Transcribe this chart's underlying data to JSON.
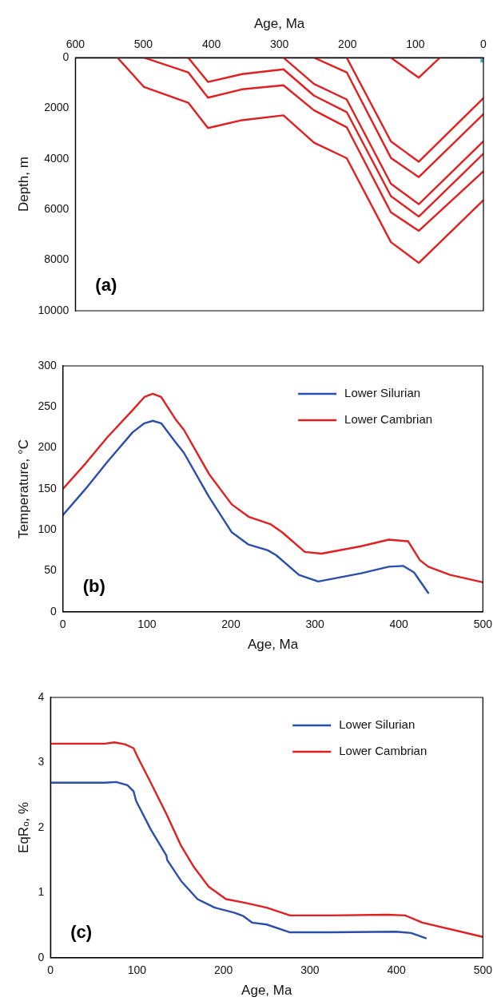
{
  "chart_data": [
    {
      "type": "line",
      "xlabel": "Age, Ma",
      "ylabel": "Depth, m",
      "xlim": [
        600,
        0
      ],
      "xticks": [
        600,
        500,
        400,
        300,
        200,
        100,
        0
      ],
      "ylim": [
        10000,
        0
      ],
      "yticks": [
        0,
        2000,
        4000,
        6000,
        8000,
        10000
      ],
      "marker": "none",
      "annotations": [
        "(a)"
      ],
      "series": [
        {
          "color": "#e02020",
          "x": [
            538,
            499,
            434,
            405,
            355,
            294,
            249,
            201,
            136,
            95,
            0
          ],
          "values": [
            0,
            1160,
            1780,
            2780,
            2470,
            2280,
            3360,
            3970,
            7290,
            8110,
            5630
          ]
        },
        {
          "color": "#e02020",
          "x": [
            499,
            434,
            405,
            355,
            294,
            249,
            201,
            136,
            95,
            0
          ],
          "values": [
            0,
            580,
            1580,
            1250,
            1090,
            2080,
            2750,
            6110,
            6840,
            4490
          ]
        },
        {
          "color": "#e02020",
          "x": [
            434,
            405,
            355,
            294,
            249,
            201,
            136,
            95,
            0
          ],
          "values": [
            0,
            960,
            650,
            460,
            1500,
            2150,
            5470,
            6280,
            3790
          ]
        },
        {
          "color": "#e02020",
          "x": [
            294,
            249,
            201,
            136,
            95,
            0
          ],
          "values": [
            0,
            1040,
            1650,
            4980,
            5790,
            3300
          ]
        },
        {
          "color": "#e02020",
          "x": [
            249,
            201,
            136,
            95,
            0
          ],
          "values": [
            0,
            580,
            3960,
            4720,
            2230
          ]
        },
        {
          "color": "#e02020",
          "x": [
            201,
            136,
            95,
            0
          ],
          "values": [
            0,
            3310,
            4110,
            1600
          ]
        },
        {
          "color": "#e02020",
          "x": [
            136,
            95,
            64
          ],
          "values": [
            0,
            790,
            0
          ]
        },
        {
          "type": "scatter",
          "marker": "square",
          "color": "#4bacc6",
          "x": [
            1
          ],
          "values": [
            100
          ]
        }
      ]
    },
    {
      "type": "line",
      "xlabel": "Age, Ma",
      "ylabel": "Temperature, °C",
      "xlim": [
        0,
        500
      ],
      "xticks": [
        0,
        100,
        200,
        300,
        400,
        500
      ],
      "ylim": [
        0,
        300
      ],
      "yticks": [
        0,
        50,
        100,
        150,
        200,
        250,
        300
      ],
      "marker": "none",
      "legend": "top right",
      "annotations": [
        "(b)"
      ],
      "series": [
        {
          "name": "Lower Silurian",
          "color": "#2a4fa8",
          "x": [
            0,
            27,
            53,
            83,
            97,
            107,
            117,
            134,
            144,
            174,
            201,
            221,
            244,
            254,
            281,
            304,
            355,
            388,
            405,
            418,
            435
          ],
          "values": [
            118,
            150,
            183,
            219,
            230,
            233,
            230,
            207,
            194,
            140,
            97,
            82,
            75,
            69,
            45,
            37,
            47,
            55,
            56,
            48,
            23
          ]
        },
        {
          "name": "Lower Cambrian",
          "color": "#e02020",
          "x": [
            0,
            27,
            53,
            83,
            97,
            107,
            117,
            134,
            144,
            174,
            201,
            221,
            247,
            261,
            288,
            308,
            355,
            388,
            411,
            425,
            435,
            461,
            500
          ],
          "values": [
            150,
            181,
            213,
            246,
            262,
            266,
            262,
            235,
            222,
            168,
            131,
            116,
            107,
            97,
            73,
            71,
            80,
            88,
            86,
            63,
            55,
            45,
            36
          ]
        }
      ]
    },
    {
      "type": "line",
      "xlabel": "Age, Ma",
      "ylabel": "EqRₒ, %",
      "xlim": [
        0,
        500
      ],
      "xticks": [
        0,
        100,
        200,
        300,
        400,
        500
      ],
      "ylim": [
        0,
        4
      ],
      "yticks": [
        0,
        1,
        2,
        3,
        4
      ],
      "marker": "none",
      "legend": "top right",
      "annotations": [
        "(c)"
      ],
      "series": [
        {
          "name": "Lower Silurian",
          "color": "#2a4fa8",
          "x": [
            0,
            63,
            76,
            89,
            96,
            99,
            116,
            134,
            135,
            151,
            170,
            190,
            213,
            223,
            233,
            250,
            277,
            323,
            400,
            417,
            434
          ],
          "values": [
            2.69,
            2.69,
            2.7,
            2.65,
            2.56,
            2.41,
            1.97,
            1.57,
            1.5,
            1.18,
            0.9,
            0.77,
            0.69,
            0.64,
            0.54,
            0.51,
            0.39,
            0.39,
            0.4,
            0.38,
            0.3
          ]
        },
        {
          "name": "Lower Cambrian",
          "color": "#e02020",
          "x": [
            0,
            63,
            74,
            86,
            96,
            101,
            116,
            134,
            151,
            166,
            183,
            203,
            223,
            250,
            277,
            323,
            390,
            410,
            430,
            500
          ],
          "values": [
            3.29,
            3.29,
            3.31,
            3.28,
            3.22,
            3.08,
            2.69,
            2.21,
            1.72,
            1.39,
            1.09,
            0.9,
            0.85,
            0.77,
            0.65,
            0.65,
            0.66,
            0.65,
            0.54,
            0.32
          ]
        }
      ]
    }
  ]
}
